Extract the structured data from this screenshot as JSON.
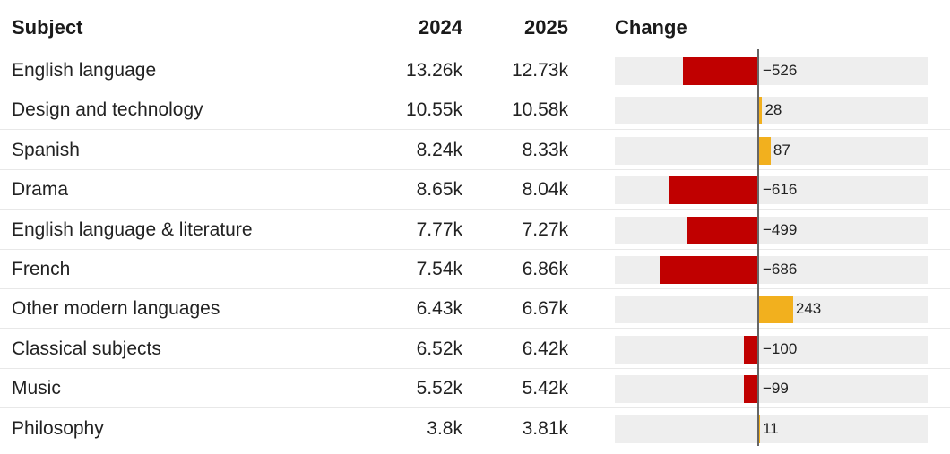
{
  "headers": {
    "subject": "Subject",
    "y2024": "2024",
    "y2025": "2025",
    "change": "Change"
  },
  "colors": {
    "decrease": "#c00000",
    "increase": "#f2b01e",
    "bar_background": "#eeeeee"
  },
  "chart_data": {
    "type": "table",
    "columns": [
      "Subject",
      "2024",
      "2025",
      "Change"
    ],
    "change_axis": {
      "min": -1000,
      "max": 1000
    },
    "rows": [
      {
        "subject": "English language",
        "y2024": "13.26k",
        "y2025": "12.73k",
        "change": -526,
        "change_label": "−526"
      },
      {
        "subject": "Design and technology",
        "y2024": "10.55k",
        "y2025": "10.58k",
        "change": 28,
        "change_label": "28"
      },
      {
        "subject": "Spanish",
        "y2024": "8.24k",
        "y2025": "8.33k",
        "change": 87,
        "change_label": "87"
      },
      {
        "subject": "Drama",
        "y2024": "8.65k",
        "y2025": "8.04k",
        "change": -616,
        "change_label": "−616"
      },
      {
        "subject": "English language & literature",
        "y2024": "7.77k",
        "y2025": "7.27k",
        "change": -499,
        "change_label": "−499"
      },
      {
        "subject": "French",
        "y2024": "7.54k",
        "y2025": "6.86k",
        "change": -686,
        "change_label": "−686"
      },
      {
        "subject": "Other modern languages",
        "y2024": "6.43k",
        "y2025": "6.67k",
        "change": 243,
        "change_label": "243"
      },
      {
        "subject": "Classical subjects",
        "y2024": "6.52k",
        "y2025": "6.42k",
        "change": -100,
        "change_label": "−100"
      },
      {
        "subject": "Music",
        "y2024": "5.52k",
        "y2025": "5.42k",
        "change": -99,
        "change_label": "−99"
      },
      {
        "subject": "Philosophy",
        "y2024": "3.8k",
        "y2025": "3.81k",
        "change": 11,
        "change_label": "11"
      }
    ]
  }
}
